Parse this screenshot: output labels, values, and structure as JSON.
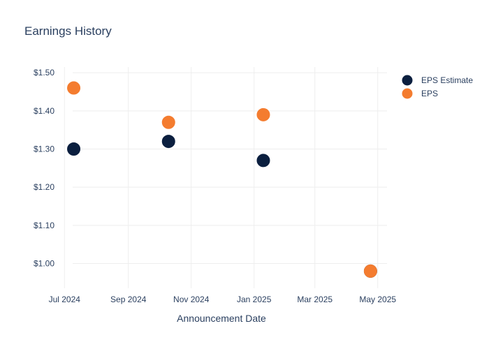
{
  "chart_data": {
    "type": "scatter",
    "title": "Earnings History",
    "xlabel": "Announcement Date",
    "ylabel": "",
    "x_ticks": [
      {
        "date": "2024-07-01",
        "label": "Jul 2024"
      },
      {
        "date": "2024-09-01",
        "label": "Sep 2024"
      },
      {
        "date": "2024-11-01",
        "label": "Nov 2024"
      },
      {
        "date": "2025-01-01",
        "label": "Jan 2025"
      },
      {
        "date": "2025-03-01",
        "label": "Mar 2025"
      },
      {
        "date": "2025-05-01",
        "label": "May 2025"
      }
    ],
    "y_ticks": [
      {
        "value": 1.0,
        "label": "$1.00"
      },
      {
        "value": 1.1,
        "label": "$1.10"
      },
      {
        "value": 1.2,
        "label": "$1.20"
      },
      {
        "value": 1.3,
        "label": "$1.30"
      },
      {
        "value": 1.4,
        "label": "$1.40"
      },
      {
        "value": 1.5,
        "label": "$1.50"
      }
    ],
    "xlim": [
      "2024-06-22",
      "2025-05-10"
    ],
    "ylim": [
      0.935,
      1.515
    ],
    "grid": true,
    "legend_position": "top-right",
    "series": [
      {
        "name": "EPS Estimate",
        "color": "#0b1f3f",
        "points": [
          {
            "x": "2024-07-10",
            "y": 1.3
          },
          {
            "x": "2024-10-10",
            "y": 1.32
          },
          {
            "x": "2025-01-10",
            "y": 1.27
          },
          {
            "x": "2025-04-24",
            "y": 0.98
          }
        ]
      },
      {
        "name": "EPS",
        "color": "#f47c2f",
        "points": [
          {
            "x": "2024-07-10",
            "y": 1.46
          },
          {
            "x": "2024-10-10",
            "y": 1.37
          },
          {
            "x": "2025-01-10",
            "y": 1.39
          },
          {
            "x": "2025-04-24",
            "y": 0.98
          }
        ]
      }
    ]
  }
}
